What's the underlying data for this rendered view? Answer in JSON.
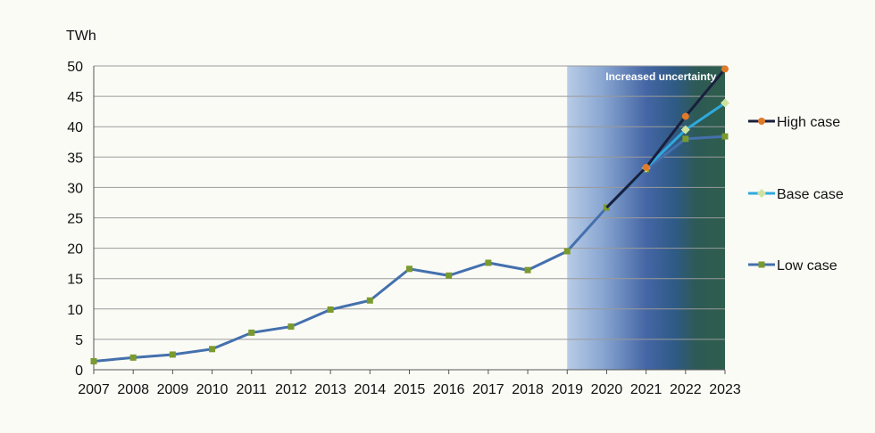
{
  "chart_data": {
    "type": "line",
    "ylabel": "TWh",
    "ylim": [
      0,
      50
    ],
    "yticks": [
      0,
      5,
      10,
      15,
      20,
      25,
      30,
      35,
      40,
      45,
      50
    ],
    "categories": [
      "2007",
      "2008",
      "2009",
      "2010",
      "2011",
      "2012",
      "2013",
      "2014",
      "2015",
      "2016",
      "2017",
      "2018",
      "2019",
      "2020",
      "2021",
      "2022",
      "2023"
    ],
    "grid": true,
    "legend_position": "right",
    "shaded_region": {
      "from": "2019",
      "to": "2023",
      "label": "Increased uncertainty"
    },
    "series": [
      {
        "name": "High case",
        "color": "#1a1f3c",
        "marker": "circle",
        "marker_color": "#e07a2a",
        "values": [
          null,
          null,
          null,
          null,
          null,
          null,
          null,
          null,
          null,
          null,
          null,
          null,
          null,
          null,
          33.3,
          41.7,
          49.5
        ]
      },
      {
        "name": "Base case",
        "color": "#2fa9dd",
        "marker": "diamond",
        "marker_color": "#cfe3a0",
        "values": [
          null,
          null,
          null,
          null,
          null,
          null,
          null,
          null,
          null,
          null,
          null,
          null,
          null,
          null,
          33.2,
          39.5,
          43.9
        ]
      },
      {
        "name": "Low case",
        "color": "#4470ad",
        "marker": "square",
        "marker_color": "#7a9a2e",
        "values": [
          1.4,
          2.0,
          2.5,
          3.4,
          6.1,
          7.1,
          9.9,
          11.4,
          16.6,
          15.5,
          17.6,
          16.4,
          19.5,
          26.7,
          33.0,
          38.0,
          38.4
        ]
      }
    ]
  }
}
